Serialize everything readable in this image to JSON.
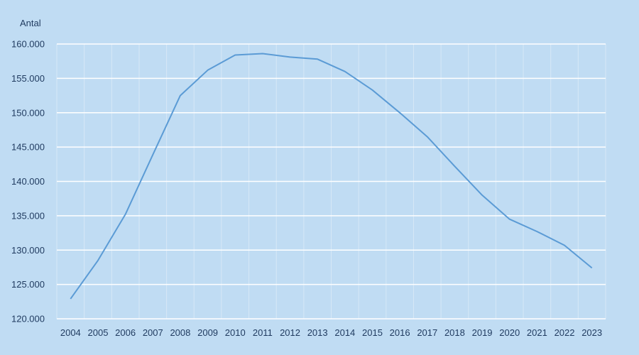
{
  "chart_data": {
    "type": "line",
    "title": "",
    "xlabel": "",
    "ylabel": "Antal",
    "ylim": [
      120000,
      160000
    ],
    "yticks": [
      120000,
      125000,
      130000,
      135000,
      140000,
      145000,
      150000,
      155000,
      160000
    ],
    "ytick_labels": [
      "120.000",
      "125.000",
      "130.000",
      "135.000",
      "140.000",
      "145.000",
      "150.000",
      "155.000",
      "160.000"
    ],
    "categories": [
      "2004",
      "2005",
      "2006",
      "2007",
      "2008",
      "2009",
      "2010",
      "2011",
      "2012",
      "2013",
      "2014",
      "2015",
      "2016",
      "2017",
      "2018",
      "2019",
      "2020",
      "2021",
      "2022",
      "2023"
    ],
    "series": [
      {
        "values": [
          122900,
          128500,
          135200,
          143900,
          152500,
          156200,
          158400,
          158600,
          158100,
          157800,
          156000,
          153300,
          150000,
          146500,
          142200,
          138000,
          134500,
          132700,
          130700,
          127400
        ],
        "color": "#5b9bd5"
      }
    ],
    "grid": true,
    "grid_color": "#ffffff",
    "background": "#c0dcf3",
    "legend": "none"
  }
}
